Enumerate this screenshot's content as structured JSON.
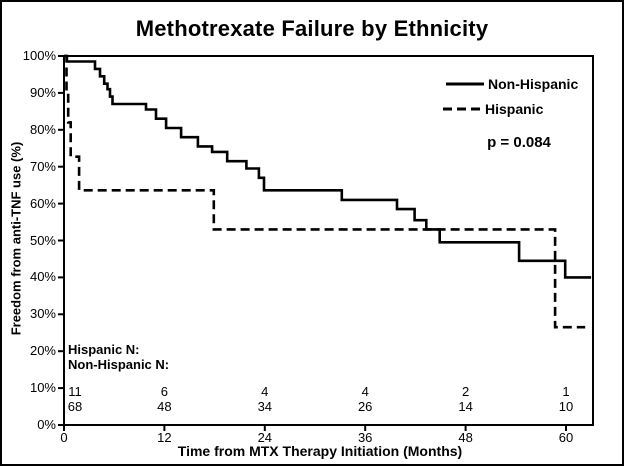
{
  "title": "Methotrexate Failure by Ethnicity",
  "y_axis": {
    "label": "Freedom from anti-TNF use (%)",
    "tick_labels": [
      "100%",
      "90%",
      "80%",
      "70%",
      "60%",
      "50%",
      "40%",
      "30%",
      "20%",
      "10%",
      "0%"
    ]
  },
  "x_axis": {
    "label": "Time from MTX Therapy Initiation (Months)",
    "tick_labels": [
      "0",
      "12",
      "24",
      "36",
      "48",
      "60"
    ]
  },
  "legend": {
    "entries": [
      {
        "label": "Non-Hispanic",
        "style": "solid"
      },
      {
        "label": "Hispanic",
        "style": "dashed"
      }
    ],
    "p_value": "p = 0.084"
  },
  "risk_table": {
    "rows": [
      {
        "label": "Hispanic N:",
        "values": [
          "11",
          "6",
          "4",
          "4",
          "2",
          "1"
        ]
      },
      {
        "label": "Non-Hispanic N:",
        "values": [
          "68",
          "48",
          "34",
          "26",
          "14",
          "10"
        ]
      }
    ]
  },
  "colors": {
    "line": "#000000",
    "background": "#ffffff"
  },
  "chart_data": {
    "type": "line",
    "subtype": "kaplan_meier_step",
    "title": "Methotrexate Failure by Ethnicity",
    "xlabel": "Time from MTX Therapy Initiation (Months)",
    "ylabel": "Freedom from anti-TNF use (%)",
    "xlim": [
      0,
      63
    ],
    "ylim": [
      0,
      100
    ],
    "x_ticks": [
      0,
      12,
      24,
      36,
      48,
      60
    ],
    "y_ticks": [
      0,
      10,
      20,
      30,
      40,
      50,
      60,
      70,
      80,
      90,
      100
    ],
    "y_tick_format": "percent",
    "grid": false,
    "legend_position": "upper-right-inside",
    "annotation": "p = 0.084",
    "series": [
      {
        "name": "Non-Hispanic",
        "line_style": "solid",
        "end_x": 63,
        "points": [
          [
            0,
            100
          ],
          [
            0.35,
            98.5
          ],
          [
            3.7,
            96.5
          ],
          [
            4.3,
            94.5
          ],
          [
            4.8,
            92.5
          ],
          [
            5.2,
            91
          ],
          [
            5.5,
            89
          ],
          [
            5.8,
            87
          ],
          [
            9.8,
            85.5
          ],
          [
            11,
            83
          ],
          [
            12.2,
            80.5
          ],
          [
            14,
            78
          ],
          [
            16,
            75.5
          ],
          [
            17.7,
            74
          ],
          [
            19.5,
            71.5
          ],
          [
            21.8,
            69.5
          ],
          [
            23.3,
            67
          ],
          [
            23.9,
            63.6
          ],
          [
            33.2,
            61
          ],
          [
            39.8,
            58.5
          ],
          [
            41.9,
            55.5
          ],
          [
            43.3,
            53
          ],
          [
            44.9,
            49.5
          ],
          [
            54.4,
            44.5
          ],
          [
            59.9,
            40
          ]
        ]
      },
      {
        "name": "Hispanic",
        "line_style": "dashed",
        "end_x": 62.3,
        "points": [
          [
            0,
            100
          ],
          [
            0.3,
            91
          ],
          [
            0.5,
            82
          ],
          [
            0.8,
            72.7
          ],
          [
            1.8,
            63.6
          ],
          [
            17.9,
            53
          ],
          [
            58.7,
            26.5
          ]
        ]
      }
    ],
    "at_risk": {
      "times": [
        0,
        12,
        24,
        36,
        48,
        60
      ],
      "Hispanic": [
        11,
        6,
        4,
        4,
        2,
        1
      ],
      "Non-Hispanic": [
        68,
        48,
        34,
        26,
        14,
        10
      ]
    }
  }
}
